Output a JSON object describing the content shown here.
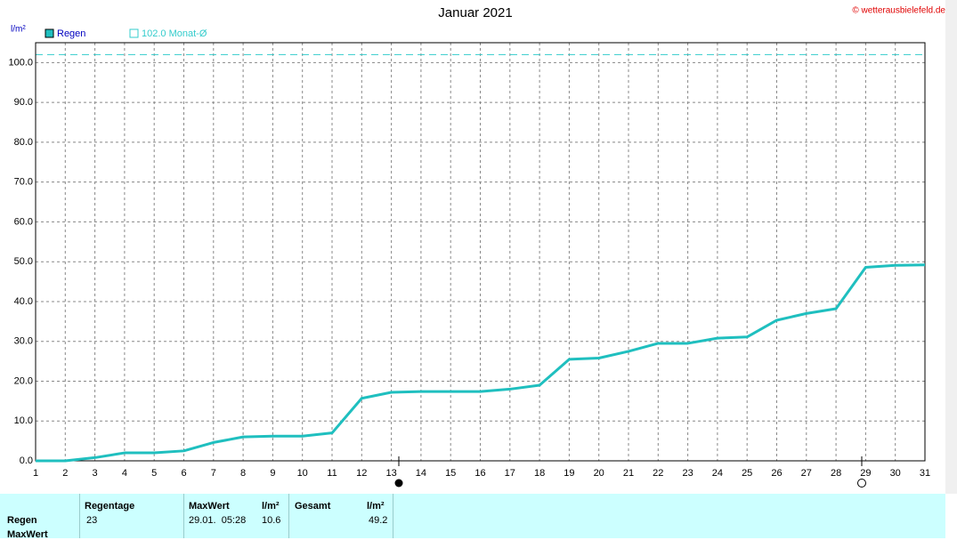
{
  "chart_data": {
    "type": "line",
    "title": "Januar 2021",
    "y_label": "l/m²",
    "credit": "© wetterausbielefeld.de",
    "x": [
      1,
      2,
      3,
      4,
      5,
      6,
      7,
      8,
      9,
      10,
      11,
      12,
      13,
      14,
      15,
      16,
      17,
      18,
      19,
      20,
      21,
      22,
      23,
      24,
      25,
      26,
      27,
      28,
      29,
      30,
      31
    ],
    "series": [
      {
        "name": "Regen",
        "color": "#1fbfbf",
        "values": [
          0,
          0,
          0.8,
          2,
          2,
          2.5,
          4.6,
          6,
          6.2,
          6.2,
          7,
          15.7,
          17.2,
          17.4,
          17.4,
          17.4,
          18,
          19,
          25.5,
          25.8,
          27.5,
          29.5,
          29.5,
          30.8,
          31.1,
          35.3,
          37,
          38.2,
          48.6,
          49.1,
          49.2
        ]
      }
    ],
    "reference": {
      "value": 102,
      "label": "102.0 Monat-Ø",
      "color": "#33cccc"
    },
    "xlim": [
      1,
      31
    ],
    "xticks": [
      1,
      2,
      3,
      4,
      5,
      6,
      7,
      8,
      9,
      10,
      11,
      12,
      13,
      14,
      15,
      16,
      17,
      18,
      19,
      20,
      21,
      22,
      23,
      24,
      25,
      26,
      27,
      28,
      29,
      30,
      31
    ],
    "ylim": [
      0,
      105
    ],
    "yticks": [
      {
        "value": 0,
        "label": "0.0"
      },
      {
        "value": 10,
        "label": "10.0"
      },
      {
        "value": 20,
        "label": "20.0"
      },
      {
        "value": 30,
        "label": "30.0"
      },
      {
        "value": 40,
        "label": "40.0"
      },
      {
        "value": 50,
        "label": "50.0"
      },
      {
        "value": 60,
        "label": "60.0"
      },
      {
        "value": 70,
        "label": "70.0"
      },
      {
        "value": 80,
        "label": "80.0"
      },
      {
        "value": 90,
        "label": "90.0"
      },
      {
        "value": 100,
        "label": "100.0"
      }
    ],
    "grid": true
  },
  "table": {
    "headers": [
      "Regentage",
      "MaxWert",
      "l/m²",
      "Gesamt",
      "l/m²"
    ],
    "rows": [
      {
        "label": "Regen",
        "cells": [
          "23",
          "29.01.  05:28",
          "10.6",
          "49.2"
        ]
      },
      {
        "label": "MaxWert"
      }
    ]
  }
}
